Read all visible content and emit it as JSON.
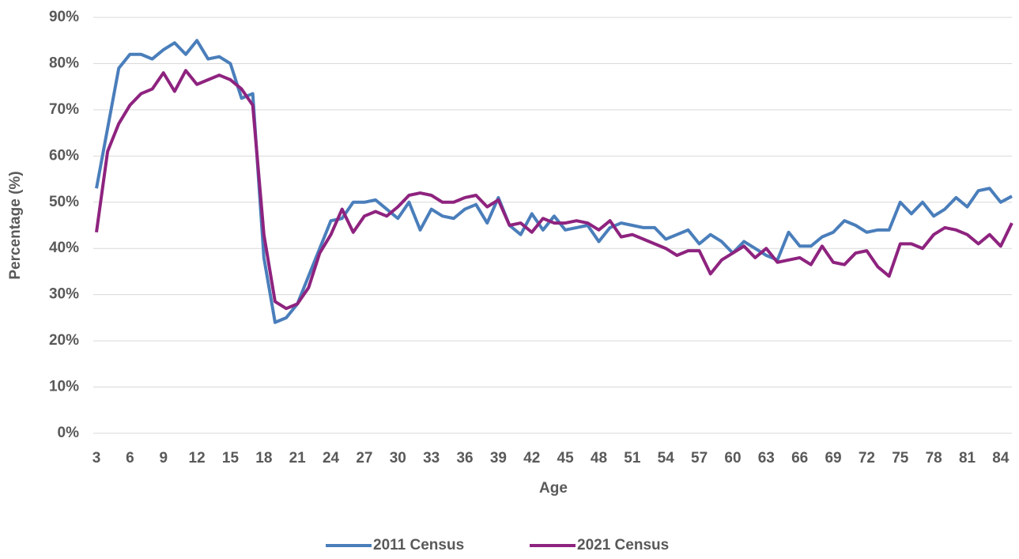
{
  "chart_data": {
    "type": "line",
    "x_label": "Age",
    "y_label": "Percentage (%)",
    "x": [
      3,
      4,
      5,
      6,
      7,
      8,
      9,
      10,
      11,
      12,
      13,
      14,
      15,
      16,
      17,
      18,
      19,
      20,
      21,
      22,
      23,
      24,
      25,
      26,
      27,
      28,
      29,
      30,
      31,
      32,
      33,
      34,
      35,
      36,
      37,
      38,
      39,
      40,
      41,
      42,
      43,
      44,
      45,
      46,
      47,
      48,
      49,
      50,
      51,
      52,
      53,
      54,
      55,
      56,
      57,
      58,
      59,
      60,
      61,
      62,
      63,
      64,
      65,
      66,
      67,
      68,
      69,
      70,
      71,
      72,
      73,
      74,
      75,
      76,
      77,
      78,
      79,
      80,
      81,
      82,
      83,
      84,
      85
    ],
    "xlim": [
      3,
      85
    ],
    "xticks": [
      3,
      6,
      9,
      12,
      15,
      18,
      21,
      24,
      27,
      30,
      33,
      36,
      39,
      42,
      45,
      48,
      51,
      54,
      57,
      60,
      63,
      66,
      69,
      72,
      75,
      78,
      81,
      84
    ],
    "ylim": [
      0,
      90
    ],
    "yticks": [
      {
        "value": 0,
        "label": "0%"
      },
      {
        "value": 10,
        "label": "10%"
      },
      {
        "value": 20,
        "label": "20%"
      },
      {
        "value": 30,
        "label": "30%"
      },
      {
        "value": 40,
        "label": "40%"
      },
      {
        "value": 50,
        "label": "50%"
      },
      {
        "value": 60,
        "label": "60%"
      },
      {
        "value": 70,
        "label": "70%"
      },
      {
        "value": 80,
        "label": "80%"
      },
      {
        "value": 90,
        "label": "90%"
      }
    ],
    "grid": true,
    "legend": "bottom",
    "series": [
      {
        "name": "2011 Census",
        "color": "#4a7ebb",
        "values": [
          53,
          66,
          79,
          82,
          82,
          81,
          83,
          84.5,
          82,
          85,
          81,
          81.5,
          80,
          72.5,
          73.5,
          38,
          24,
          25,
          28,
          34,
          40,
          46,
          46.5,
          50,
          50,
          50.5,
          48.5,
          46.5,
          50,
          44,
          48.5,
          47,
          46.5,
          48.5,
          49.5,
          45.5,
          51,
          45,
          43,
          47.5,
          44,
          47,
          44,
          44.5,
          45,
          41.5,
          44.5,
          45.5,
          45,
          44.5,
          44.5,
          42,
          43,
          44,
          41,
          43,
          41.5,
          39,
          41.5,
          40,
          38.5,
          37.5,
          43.5,
          40.5,
          40.5,
          42.5,
          43.5,
          46,
          45,
          43.5,
          44,
          44,
          50,
          47.5,
          50,
          47,
          48.5,
          51,
          49,
          52.5,
          53,
          50,
          51.3
        ]
      },
      {
        "name": "2021 Census",
        "color": "#8e237f",
        "values": [
          43.5,
          61,
          67,
          71,
          73.5,
          74.5,
          78,
          74,
          78.5,
          75.5,
          76.5,
          77.5,
          76.5,
          74.5,
          71,
          43,
          28.5,
          27,
          28,
          31.5,
          39,
          43,
          48.5,
          43.5,
          47,
          48,
          47,
          49,
          51.5,
          52,
          51.5,
          50,
          50,
          51,
          51.5,
          49,
          50.5,
          45,
          45.5,
          43.5,
          46.5,
          45.5,
          45.5,
          46,
          45.5,
          44,
          46,
          42.5,
          43,
          42,
          41,
          40,
          38.5,
          39.5,
          39.5,
          34.5,
          37.5,
          39,
          40.5,
          38,
          40,
          37,
          37.5,
          38,
          36.5,
          40.5,
          37,
          36.5,
          39,
          39.5,
          36,
          34,
          41,
          41,
          40,
          43,
          44.5,
          44,
          43,
          41,
          43,
          40.5,
          45.5
        ]
      }
    ]
  }
}
